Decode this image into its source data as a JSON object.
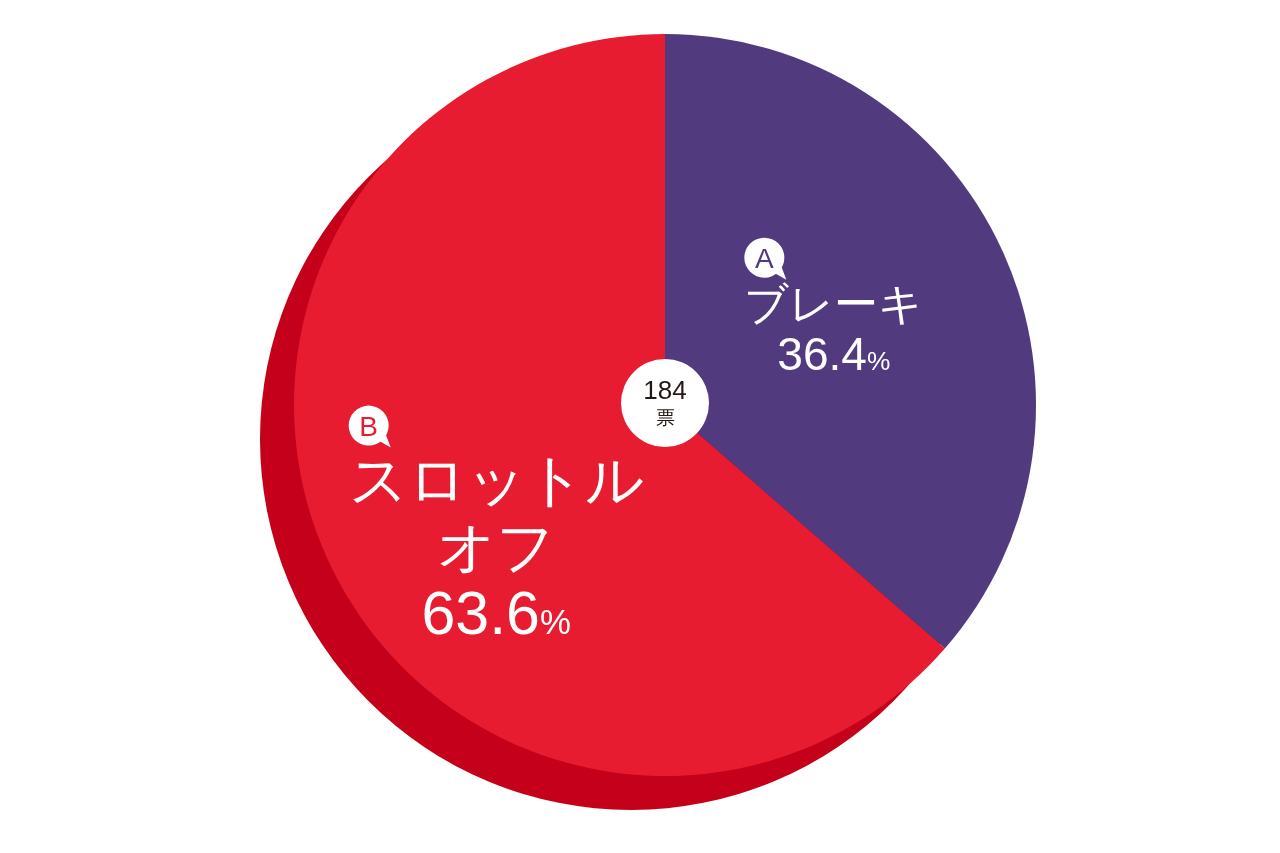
{
  "chart_data": {
    "type": "donut",
    "categories": [
      "ブレーキ",
      "スロットルオフ"
    ],
    "values": [
      36.4,
      63.6
    ],
    "colors": [
      "#523a7e",
      "#e71c31"
    ],
    "value_labels": [
      "36.4%",
      "63.6%"
    ],
    "annotations": [
      {
        "text": "A",
        "x": "ブレーキ"
      },
      {
        "text": "B",
        "x": "スロットルオフ"
      },
      "184",
      "票"
    ]
  }
}
